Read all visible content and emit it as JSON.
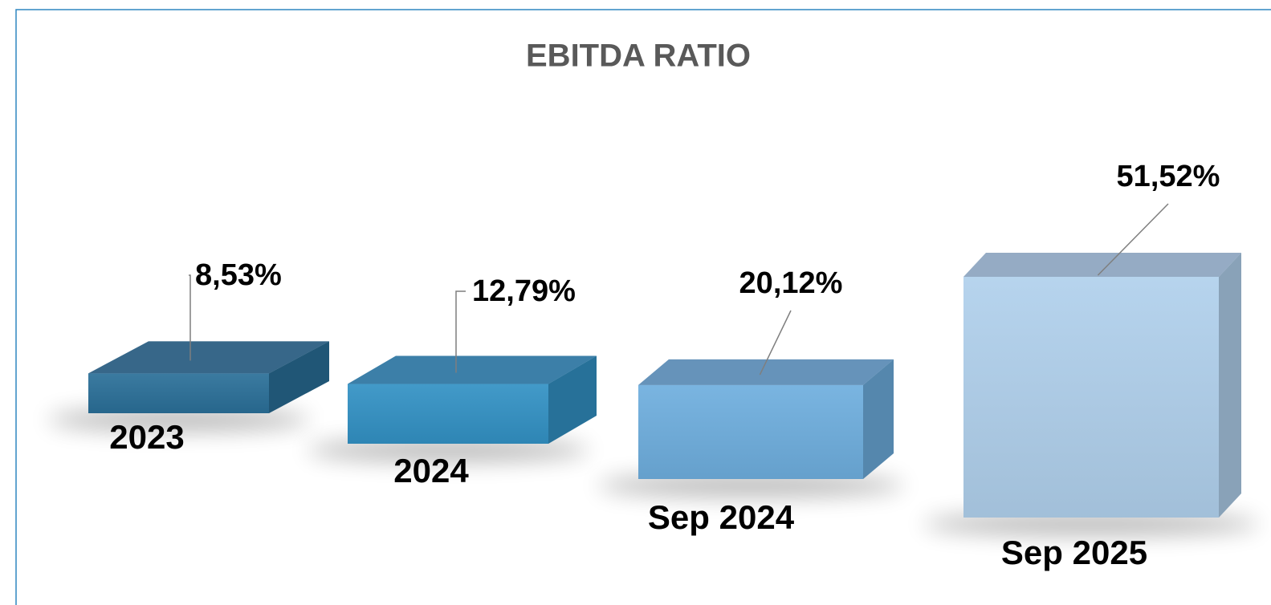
{
  "chart_data": {
    "type": "bar3d",
    "title": "EBITDA RATIO",
    "categories": [
      "2023",
      "2024",
      "Sep 2024",
      "Sep 2025"
    ],
    "values": [
      8.53,
      12.79,
      20.12,
      51.52
    ],
    "value_labels": [
      "8,53%",
      "12,79%",
      "20,12%",
      "51,52%"
    ],
    "colors": [
      "#2a6f98",
      "#3291c4",
      "#6eaede",
      "#b0d0ec"
    ]
  }
}
